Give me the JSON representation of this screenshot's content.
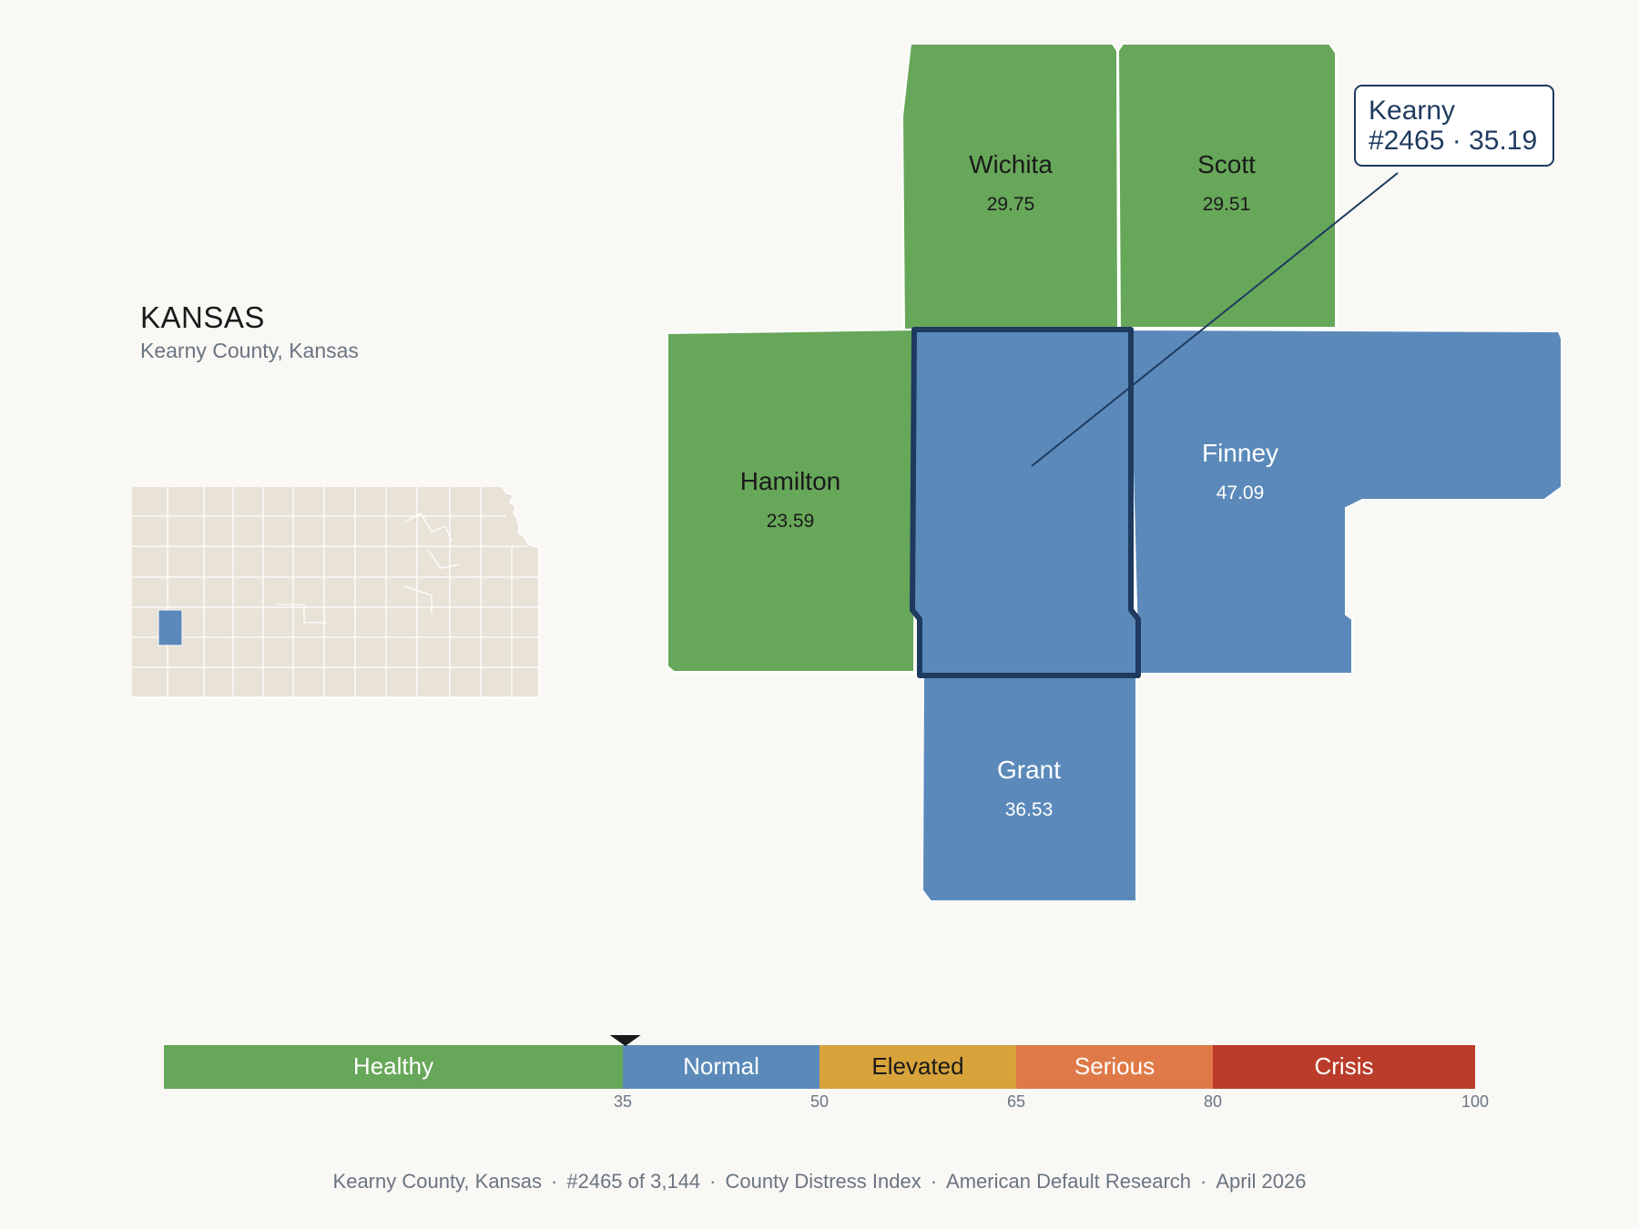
{
  "state": {
    "title": "KANSAS",
    "subtitle": "Kearny County, Kansas"
  },
  "colors": {
    "healthy": "#67a759",
    "normal": "#5b8aba",
    "elevated": "#d8a33a",
    "serious": "#df7a48",
    "crisis": "#bb3c2a",
    "highlight_border": "#1e3a5f",
    "inset_fill": "#e8e2d7"
  },
  "focus_county": {
    "name": "Kearny",
    "callout_line1": "Kearny",
    "callout_line2": "#2465 · 35.19",
    "category": "normal"
  },
  "counties": [
    {
      "name": "Wichita",
      "value": "29.75",
      "category": "healthy"
    },
    {
      "name": "Scott",
      "value": "29.51",
      "category": "healthy"
    },
    {
      "name": "Hamilton",
      "value": "23.59",
      "category": "healthy"
    },
    {
      "name": "Finney",
      "value": "47.09",
      "category": "normal"
    },
    {
      "name": "Grant",
      "value": "36.53",
      "category": "normal"
    }
  ],
  "scale": {
    "min": 0,
    "max": 100,
    "marker_value": 35.19,
    "bands": [
      {
        "label": "Healthy",
        "from": 0,
        "to": 35,
        "color": "#67a759",
        "text_color": "#ffffff"
      },
      {
        "label": "Normal",
        "from": 35,
        "to": 50,
        "color": "#5b8aba",
        "text_color": "#ffffff"
      },
      {
        "label": "Elevated",
        "from": 50,
        "to": 65,
        "color": "#d8a33a",
        "text_color": "#1a1a1a"
      },
      {
        "label": "Serious",
        "from": 65,
        "to": 80,
        "color": "#df7a48",
        "text_color": "#ffffff"
      },
      {
        "label": "Crisis",
        "from": 80,
        "to": 100,
        "color": "#bb3c2a",
        "text_color": "#ffffff"
      }
    ],
    "ticks": [
      "35",
      "50",
      "65",
      "80",
      "100"
    ]
  },
  "footer": {
    "county": "Kearny County, Kansas",
    "rank": "#2465 of 3,144",
    "index": "County Distress Index",
    "org": "American Default Research",
    "date": "April 2026",
    "separator": "·"
  }
}
